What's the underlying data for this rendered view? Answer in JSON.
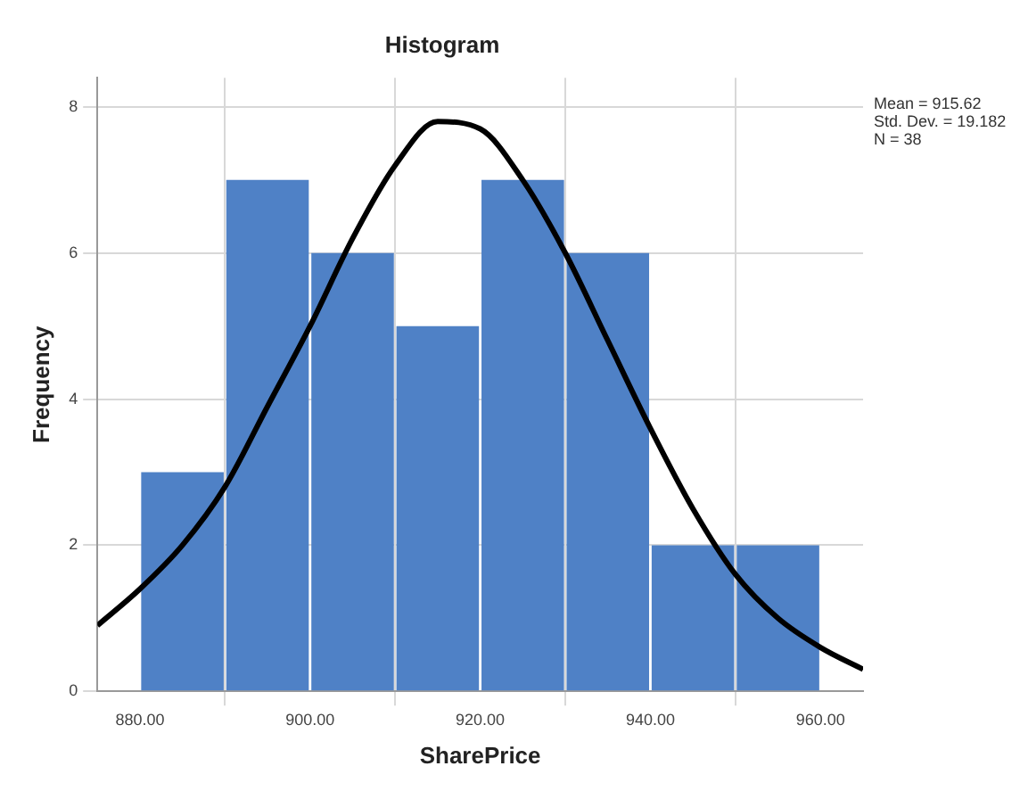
{
  "chart_data": {
    "type": "histogram",
    "title": "Histogram",
    "xlabel": "SharePrice",
    "ylabel": "Frequency",
    "bins": [
      880,
      890,
      900,
      910,
      920,
      930,
      940,
      950,
      960
    ],
    "values": [
      3,
      7,
      6,
      5,
      7,
      6,
      2,
      2
    ],
    "color": "#4f81c6",
    "series": [
      {
        "type": "line",
        "color": "#000000",
        "x": [
          875,
          880,
          885,
          890,
          895,
          900,
          905,
          910,
          915,
          920,
          925,
          930,
          935,
          940,
          945,
          950,
          955,
          960,
          965
        ],
        "values": [
          0.9,
          1.4,
          2.0,
          2.8,
          3.9,
          5.0,
          6.2,
          7.2,
          7.8,
          7.7,
          7.0,
          6.0,
          4.8,
          3.6,
          2.5,
          1.6,
          1.0,
          0.6,
          0.3
        ]
      }
    ],
    "xlim": [
      875,
      965
    ],
    "ylim": [
      0,
      8.4
    ],
    "xticks": [
      {
        "value": 880,
        "label": "880.00"
      },
      {
        "value": 900,
        "label": "900.00"
      },
      {
        "value": 920,
        "label": "920.00"
      },
      {
        "value": 940,
        "label": "940.00"
      },
      {
        "value": 960,
        "label": "960.00"
      }
    ],
    "yticks": [
      0,
      2,
      4,
      6,
      8
    ],
    "grid": true,
    "legend": false,
    "marker": "none",
    "annotations": [
      "Mean = 915.62",
      "Std. Dev. = 19.182",
      "N = 38"
    ]
  }
}
